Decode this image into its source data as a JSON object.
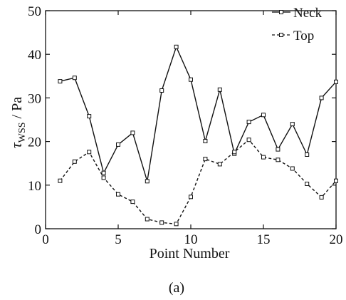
{
  "chart_data": {
    "type": "line",
    "xlabel": "Point Number",
    "ylabel_symbol": "τ",
    "ylabel_subscript": "WSS",
    "ylabel_unit": " / Pa",
    "xlim": [
      0,
      20
    ],
    "ylim": [
      0,
      50
    ],
    "xticks": [
      0,
      5,
      10,
      15,
      20
    ],
    "yticks": [
      0,
      10,
      20,
      30,
      40,
      50
    ],
    "grid": false,
    "legend_position": "top-right",
    "caption": "(a)",
    "x": [
      1,
      2,
      3,
      4,
      5,
      6,
      7,
      8,
      9,
      10,
      11,
      12,
      13,
      14,
      15,
      16,
      17,
      18,
      19,
      20
    ],
    "series": [
      {
        "name": "Neck",
        "style": "solid",
        "color": "#111111",
        "values": [
          33.8,
          34.6,
          25.8,
          12.8,
          19.3,
          22.0,
          10.9,
          31.7,
          41.7,
          34.2,
          20.1,
          31.9,
          17.2,
          24.5,
          26.1,
          18.2,
          24.0,
          17.0,
          30.0,
          33.7
        ]
      },
      {
        "name": "Top",
        "style": "dashed",
        "color": "#111111",
        "values": [
          11.0,
          15.4,
          17.6,
          11.7,
          7.9,
          6.2,
          2.2,
          1.4,
          1.1,
          7.3,
          16.0,
          14.8,
          17.6,
          20.4,
          16.4,
          15.8,
          13.8,
          10.3,
          7.2,
          11.0
        ]
      }
    ]
  }
}
